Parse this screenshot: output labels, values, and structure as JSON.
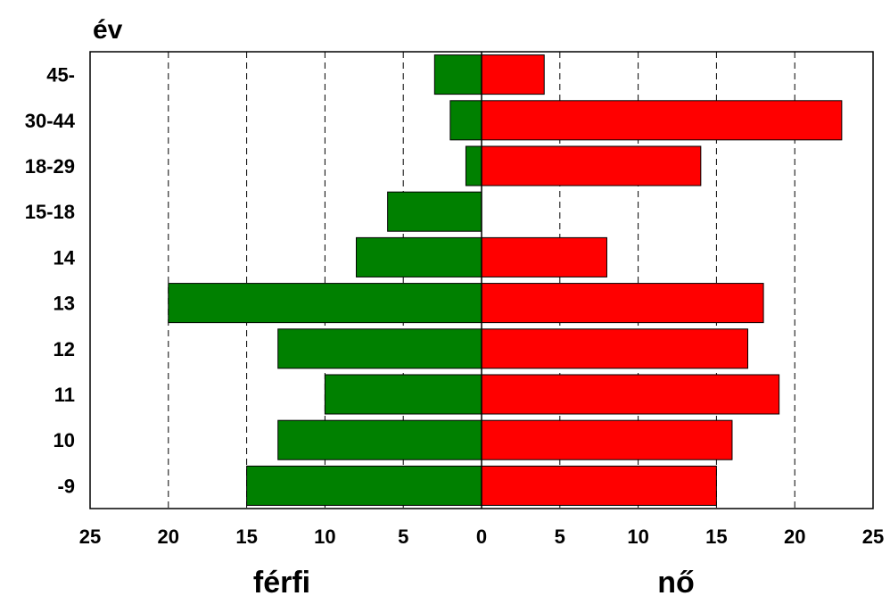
{
  "chart_data": {
    "type": "bar",
    "orientation": "horizontal-butterfly",
    "title": "év",
    "categories": [
      "-9",
      "10",
      "11",
      "12",
      "13",
      "14",
      "15-18",
      "18-29",
      "30-44",
      "45-"
    ],
    "series": [
      {
        "name": "férfi",
        "color": "#008000",
        "direction": "left",
        "values": [
          15,
          13,
          10,
          13,
          20,
          8,
          6,
          1,
          2,
          3
        ]
      },
      {
        "name": "nő",
        "color": "#ff0000",
        "direction": "right",
        "values": [
          15,
          16,
          19,
          17,
          18,
          8,
          0,
          14,
          23,
          4
        ]
      }
    ],
    "xlim": [
      -25,
      25
    ],
    "x_ticks": [
      -25,
      -20,
      -15,
      -10,
      -5,
      0,
      5,
      10,
      15,
      20,
      25
    ],
    "x_tick_labels": [
      "25",
      "20",
      "15",
      "10",
      "5",
      "0",
      "5",
      "10",
      "15",
      "20",
      "25"
    ],
    "grid": "vertical dashed",
    "legend": "none"
  }
}
